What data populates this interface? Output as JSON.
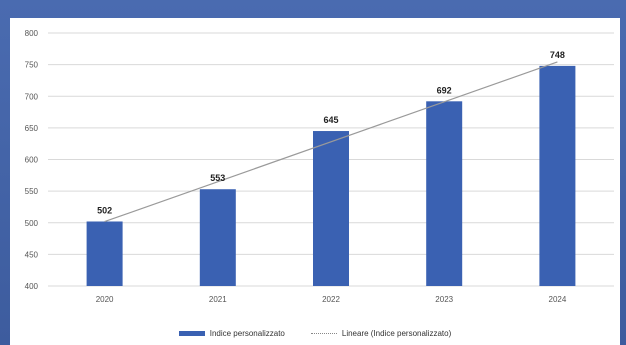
{
  "colors": {
    "bar": "#3a61b2",
    "trend": "#9a9a9a",
    "grid": "#d9d9d9"
  },
  "chart_data": {
    "type": "bar",
    "categories": [
      "2020",
      "2021",
      "2022",
      "2023",
      "2024"
    ],
    "series": [
      {
        "name": "Indice personalizzato",
        "values": [
          502,
          553,
          645,
          692,
          748
        ]
      }
    ],
    "trendline": {
      "name": "Lineare (Indice personalizzato)",
      "type": "linear"
    },
    "ylim": [
      400,
      800
    ],
    "yticks": [
      400,
      450,
      500,
      550,
      600,
      650,
      700,
      750,
      800
    ],
    "grid": true,
    "legend": "bottom",
    "data_labels": [
      "502",
      "553",
      "645",
      "692",
      "748"
    ]
  }
}
